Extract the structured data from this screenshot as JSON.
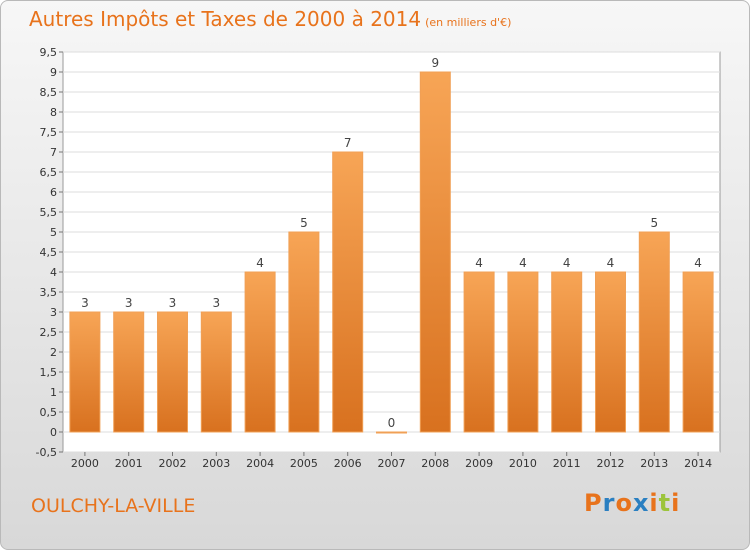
{
  "header": {
    "title": "Autres Impôts et Taxes de 2000 à 2014",
    "subtitle": "(en milliers d'€)"
  },
  "footer": {
    "place": "OULCHY-LA-VILLE",
    "logo_letters": [
      "P",
      "r",
      "o",
      "x",
      "i",
      "t",
      "i"
    ],
    "logo_colors": [
      "#e8731c",
      "#2a7fc1",
      "#e8731c",
      "#2a7fc1",
      "#e8731c",
      "#9cc43c",
      "#e8731c"
    ]
  },
  "colors": {
    "accent": "#e8731c",
    "bar_top": "#f7a556",
    "bar_bottom": "#d8711f"
  },
  "chart_data": {
    "type": "bar",
    "title": "Autres Impôts et Taxes de 2000 à 2014",
    "subtitle": "(en milliers d'€)",
    "categories": [
      "2000",
      "2001",
      "2002",
      "2003",
      "2004",
      "2005",
      "2006",
      "2007",
      "2008",
      "2009",
      "2010",
      "2011",
      "2012",
      "2013",
      "2014"
    ],
    "values": [
      3,
      3,
      3,
      3,
      4,
      5,
      7,
      0,
      9,
      4,
      4,
      4,
      4,
      5,
      4
    ],
    "data_labels": [
      "3",
      "3",
      "3",
      "3",
      "4",
      "5",
      "7",
      "0",
      "9",
      "4",
      "4",
      "4",
      "4",
      "5",
      "4"
    ],
    "ylim": [
      -0.5,
      9.5
    ],
    "yticks": [
      -0.5,
      0,
      0.5,
      1,
      1.5,
      2,
      2.5,
      3,
      3.5,
      4,
      4.5,
      5,
      5.5,
      6,
      6.5,
      7,
      7.5,
      8,
      8.5,
      9,
      9.5
    ],
    "ytick_labels": [
      "-0,5",
      "0",
      "0,5",
      "1",
      "1,5",
      "2",
      "2,5",
      "3",
      "3,5",
      "4",
      "4,5",
      "5",
      "5,5",
      "6",
      "6,5",
      "7",
      "7,5",
      "8",
      "8,5",
      "9",
      "9,5"
    ],
    "grid": true,
    "xlabel": "",
    "ylabel": ""
  }
}
